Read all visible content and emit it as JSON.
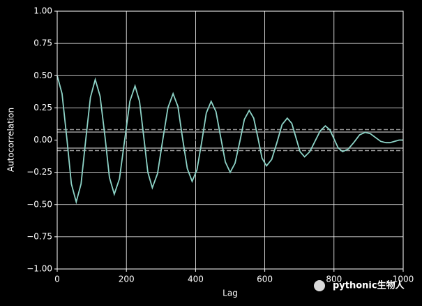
{
  "chart_data": {
    "type": "line",
    "xlabel": "Lag",
    "ylabel": "Autocorrelation",
    "x": [
      0,
      14,
      28,
      41,
      55,
      69,
      82,
      96,
      110,
      124,
      138,
      151,
      165,
      180,
      195,
      210,
      225,
      238,
      250,
      262,
      275,
      290,
      305,
      320,
      335,
      349,
      362,
      376,
      390,
      404,
      418,
      431,
      445,
      459,
      472,
      486,
      500,
      514,
      528,
      541,
      555,
      568,
      580,
      592,
      605,
      620,
      635,
      650,
      665,
      678,
      690,
      702,
      715,
      730,
      745,
      760,
      775,
      788,
      800,
      812,
      825,
      841,
      857,
      874,
      890,
      905,
      920,
      935,
      950,
      962,
      975,
      988,
      1000
    ],
    "series": [
      {
        "name": "autocorrelation",
        "color": "#8dd3c7",
        "values": [
          0.5,
          0.36,
          0.01,
          -0.34,
          -0.48,
          -0.34,
          -0.01,
          0.33,
          0.47,
          0.34,
          0.03,
          -0.29,
          -0.42,
          -0.3,
          0.0,
          0.3,
          0.42,
          0.3,
          0.03,
          -0.25,
          -0.37,
          -0.26,
          0.0,
          0.25,
          0.36,
          0.26,
          0.02,
          -0.22,
          -0.32,
          -0.23,
          -0.01,
          0.21,
          0.3,
          0.22,
          0.03,
          -0.17,
          -0.25,
          -0.18,
          -0.01,
          0.16,
          0.23,
          0.17,
          0.02,
          -0.14,
          -0.2,
          -0.15,
          -0.02,
          0.12,
          0.17,
          0.13,
          0.02,
          -0.09,
          -0.13,
          -0.09,
          -0.01,
          0.07,
          0.11,
          0.08,
          0.01,
          -0.06,
          -0.09,
          -0.07,
          -0.02,
          0.04,
          0.06,
          0.05,
          0.02,
          -0.01,
          -0.02,
          -0.02,
          -0.01,
          0.0,
          0.0
        ]
      }
    ],
    "reference_lines": [
      {
        "value": 0.0815,
        "dashed": true,
        "color": "#999999"
      },
      {
        "value": 0.062,
        "dashed": false,
        "color": "#999999"
      },
      {
        "value": 0,
        "dashed": false,
        "color": "#000000"
      },
      {
        "value": -0.062,
        "dashed": false,
        "color": "#999999"
      },
      {
        "value": -0.0815,
        "dashed": true,
        "color": "#999999"
      }
    ],
    "xlim": [
      0,
      1000
    ],
    "ylim": [
      -1,
      1
    ],
    "xticks": [
      0,
      200,
      400,
      600,
      800,
      1000
    ],
    "yticks": [
      {
        "value": -1,
        "label": "−1.00"
      },
      {
        "value": -0.75,
        "label": "−0.75"
      },
      {
        "value": -0.5,
        "label": "−0.50"
      },
      {
        "value": -0.25,
        "label": "−0.25"
      },
      {
        "value": 0,
        "label": "0.00"
      },
      {
        "value": 0.25,
        "label": "0.25"
      },
      {
        "value": 0.5,
        "label": "0.50"
      },
      {
        "value": 0.75,
        "label": "0.75"
      },
      {
        "value": 1,
        "label": "1.00"
      }
    ],
    "grid": true,
    "watermark": "pythonic生物人"
  }
}
